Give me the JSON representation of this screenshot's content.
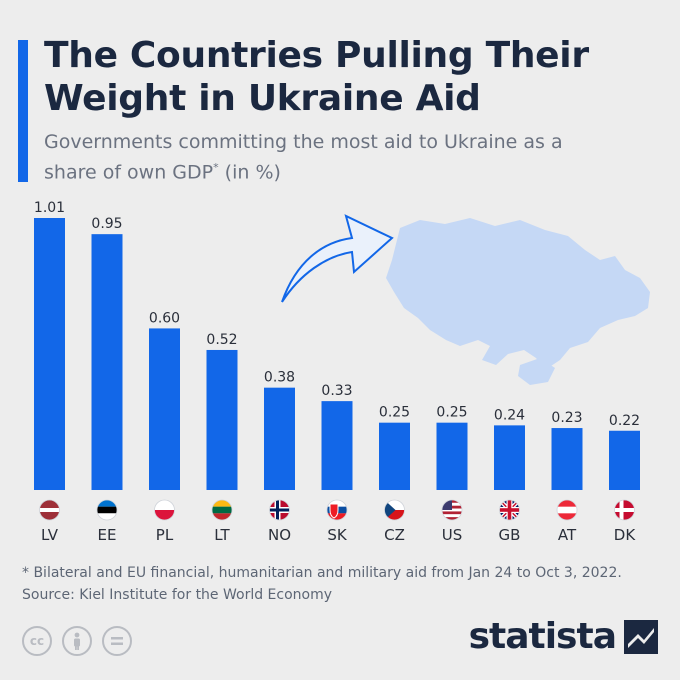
{
  "title": "The Countries Pulling Their Weight in Ukraine Aid",
  "subtitle_main": "Governments committing the most aid to Ukraine as a share of own GDP",
  "subtitle_sup": "*",
  "subtitle_unit": " (in %)",
  "footnote": "* Bilateral and EU financial, humanitarian and military aid from Jan 24 to Oct 3, 2022.",
  "source": "Source: Kiel Institute for the World Economy",
  "brand": "statista",
  "colors": {
    "accent": "#1267e8",
    "bar": "#1267e8",
    "map": "#c5d8f5",
    "title": "#1b2840"
  },
  "icons": [
    "cc-icon",
    "attribution-icon",
    "no-derivatives-icon",
    "statista-logo-icon",
    "arrow-icon",
    "ukraine-map-icon"
  ],
  "chart_data": {
    "type": "bar",
    "title": "The Countries Pulling Their Weight in Ukraine Aid",
    "ylabel": "",
    "xlabel": "",
    "ylim": [
      0,
      1.01
    ],
    "grid": false,
    "categories": [
      "LV",
      "EE",
      "PL",
      "LT",
      "NO",
      "SK",
      "CZ",
      "US",
      "GB",
      "AT",
      "DK"
    ],
    "values": [
      1.01,
      0.95,
      0.6,
      0.52,
      0.38,
      0.33,
      0.25,
      0.25,
      0.24,
      0.23,
      0.22
    ],
    "value_labels": [
      "1.01",
      "0.95",
      "0.60",
      "0.52",
      "0.38",
      "0.33",
      "0.25",
      "0.25",
      "0.24",
      "0.23",
      "0.22"
    ]
  }
}
